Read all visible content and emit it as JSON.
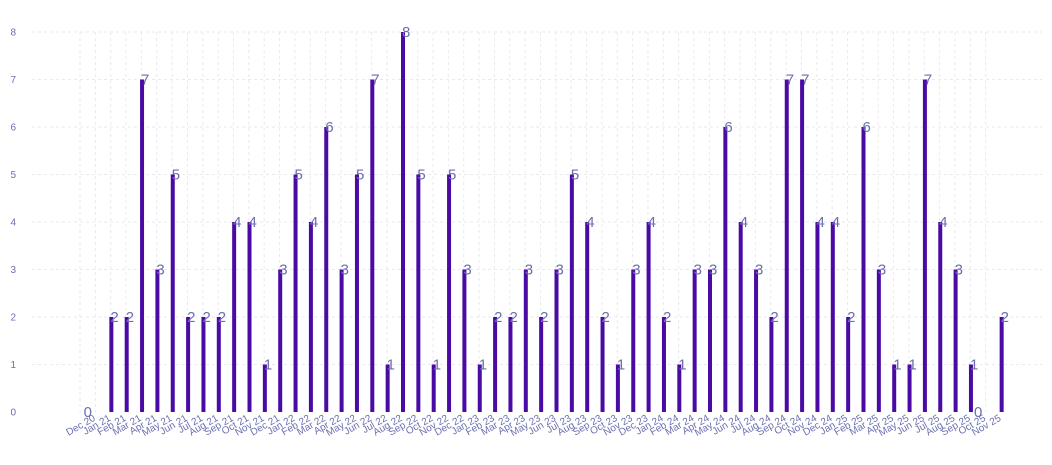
{
  "chart_data": {
    "type": "bar",
    "title": "",
    "xlabel": "",
    "ylabel": "",
    "ylim": [
      0,
      8
    ],
    "yticks": [
      0,
      1,
      2,
      3,
      4,
      5,
      6,
      7,
      8
    ],
    "grid": true,
    "colors": {
      "bar": "#4b0aa3",
      "label": "#6a6fb0",
      "grid": "#e9e9ee"
    },
    "categories": [
      "Dec 20",
      "Jan 21",
      "Feb 21",
      "Mar 21",
      "Apr 21",
      "May 21",
      "Jun 21",
      "Jul 21",
      "Aug 21",
      "Sep 21",
      "Oct 21",
      "Nov 21",
      "Dec 21",
      "Jan 22",
      "Feb 22",
      "Mar 22",
      "Apr 22",
      "May 22",
      "Jun 22",
      "Jul 22",
      "Aug 22",
      "Sep 22",
      "Oct 22",
      "Nov 22",
      "Dec 22",
      "Jan 23",
      "Feb 23",
      "Mar 23",
      "Apr 23",
      "May 23",
      "Jun 23",
      "Jul 23",
      "Aug 23",
      "Sep 23",
      "Oct 23",
      "Nov 23",
      "Dec 23",
      "Jan 24",
      "Feb 24",
      "Mar 24",
      "Apr 24",
      "May 24",
      "Jun 24",
      "Jul 24",
      "Aug 24",
      "Sep 24",
      "Oct 24",
      "Nov 24",
      "Dec 24",
      "Jan 25",
      "Feb 25",
      "Mar 25",
      "Apr 25",
      "May 25",
      "Jun 25",
      "Jul 25",
      "Aug 25",
      "Sep 25",
      "Oct 25",
      "Nov 25"
    ],
    "values": [
      0,
      2,
      2,
      7,
      3,
      5,
      2,
      2,
      2,
      4,
      4,
      1,
      3,
      5,
      4,
      6,
      3,
      5,
      7,
      1,
      8,
      5,
      1,
      5,
      3,
      1,
      2,
      2,
      3,
      2,
      3,
      5,
      4,
      2,
      1,
      3,
      4,
      2,
      1,
      3,
      3,
      6,
      4,
      3,
      2,
      7,
      7,
      4,
      4,
      2,
      6,
      3,
      1,
      1,
      7,
      4,
      3,
      1,
      0,
      2
    ]
  }
}
